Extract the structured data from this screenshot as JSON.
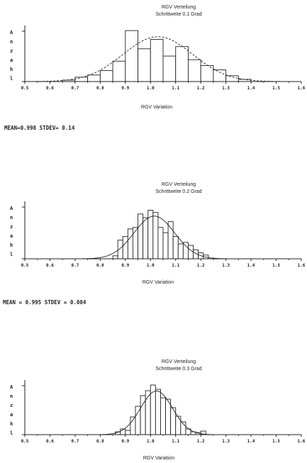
{
  "chart_data": [
    {
      "type": "bar",
      "title": "RGV Verteilung",
      "subtitle": "Schrittweite 0.1 Grad",
      "ylabel": "Anzahl",
      "xlabel": "RGV Variation",
      "xlim": [
        0.5,
        1.6
      ],
      "ylim": [
        0,
        75
      ],
      "xtick_labels": [
        "0.5",
        "0.6",
        "0.7",
        "0.8",
        "0.9",
        "1.0",
        "1.1",
        "1.2",
        "1.3",
        "1.4",
        "1.5",
        "1.6"
      ],
      "bin_width": 0.05,
      "bins": [
        0.65,
        0.7,
        0.75,
        0.8,
        0.85,
        0.9,
        0.95,
        1.0,
        1.05,
        1.1,
        1.15,
        1.2,
        1.25,
        1.3,
        1.35
      ],
      "values": [
        2,
        6,
        9,
        15,
        28,
        70,
        45,
        58,
        35,
        48,
        30,
        22,
        16,
        8,
        3
      ],
      "fit_curve": "normal",
      "stats_text": "MEAN=0.998  STDEV= 0.14"
    },
    {
      "type": "bar",
      "title": "RGV Verteilung",
      "subtitle": "Schrittweite 0.2 Grad",
      "ylabel": "Anzahl",
      "xlabel": "RGV Variation",
      "xlim": [
        0.5,
        1.6
      ],
      "ylim": [
        0,
        75
      ],
      "xtick_labels": [
        "0.5",
        "0.6",
        "0.7",
        "0.8",
        "0.9",
        "1.0",
        "1.1",
        "1.2",
        "1.3",
        "1.4",
        "1.5",
        "1.6"
      ],
      "bin_width": 0.02,
      "bins": [
        0.85,
        0.87,
        0.89,
        0.91,
        0.93,
        0.95,
        0.97,
        0.99,
        1.01,
        1.03,
        1.05,
        1.07,
        1.09,
        1.11,
        1.13,
        1.15,
        1.17,
        1.19,
        1.21
      ],
      "values": [
        4,
        25,
        30,
        40,
        42,
        60,
        55,
        65,
        62,
        42,
        35,
        50,
        30,
        20,
        22,
        18,
        12,
        8,
        5
      ],
      "fit_curve": "normal",
      "stats_text": "MEAN = 0.995  STDEV = 0.084"
    },
    {
      "type": "bar",
      "title": "RGV Verteilung",
      "subtitle": "Schrittweite 0.3 Grad",
      "ylabel": "Anzahl",
      "xlabel": "RGV Variation",
      "xlim": [
        0.5,
        1.6
      ],
      "ylim": [
        0,
        75
      ],
      "xtick_labels": [
        "0.5",
        "0.6",
        "0.7",
        "0.8",
        "0.9",
        "1.0",
        "1.1",
        "1.2",
        "1.3",
        "1.4",
        "1.5",
        "1.6"
      ],
      "bin_width": 0.02,
      "bins": [
        0.86,
        0.88,
        0.9,
        0.92,
        0.94,
        0.96,
        0.98,
        1.0,
        1.02,
        1.04,
        1.06,
        1.08,
        1.1,
        1.12,
        1.14,
        1.16,
        1.18,
        1.2
      ],
      "values": [
        4,
        8,
        6,
        25,
        40,
        55,
        62,
        70,
        64,
        52,
        50,
        38,
        26,
        18,
        8,
        4,
        3,
        5
      ],
      "fit_curve": "normal",
      "stats_text": ""
    }
  ]
}
